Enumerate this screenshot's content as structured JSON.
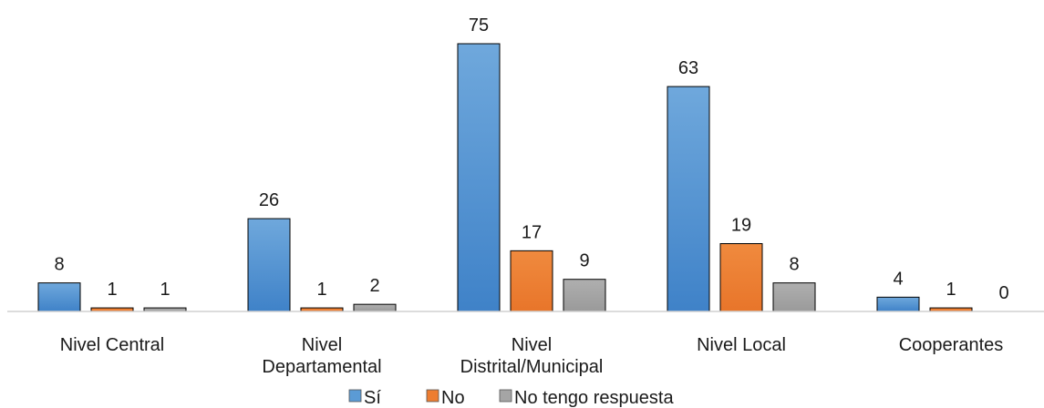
{
  "chart_data": {
    "type": "bar",
    "categories": [
      [
        "Nivel Central"
      ],
      [
        "Nivel",
        "Departamental"
      ],
      [
        "Nivel",
        "Distrital/Municipal"
      ],
      [
        "Nivel Local"
      ],
      [
        "Cooperantes"
      ]
    ],
    "series": [
      {
        "name": "Sí",
        "values": [
          8,
          26,
          75,
          63,
          4
        ],
        "color": "#5B9BD5"
      },
      {
        "name": "No",
        "values": [
          1,
          1,
          17,
          19,
          1
        ],
        "color": "#ED7D31"
      },
      {
        "name": "No tengo respuesta",
        "values": [
          1,
          2,
          9,
          8,
          0
        ],
        "color": "#A5A5A5"
      }
    ],
    "title": "",
    "xlabel": "",
    "ylabel": "",
    "ylim": [
      0,
      75
    ],
    "grid": false,
    "legend_position": "bottom"
  }
}
